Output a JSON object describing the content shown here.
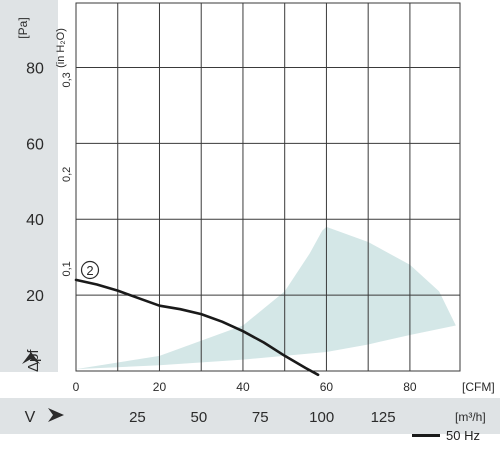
{
  "chart_data": {
    "type": "line",
    "y_unit_left": "[Pa]",
    "y_unit_secondary": "(in H₂O)",
    "y_axis_symbol": "Δpf",
    "x_unit_primary": "[CFM]",
    "x_unit_secondary": "[m³/h]",
    "x_axis_symbol": "V",
    "y_ticks_pa": [
      20,
      40,
      60,
      80
    ],
    "y_ticks_inh2o": [
      "0,1",
      "0,2",
      "0,3"
    ],
    "y_ticks_inh2o_values": [
      0.1,
      0.2,
      0.3
    ],
    "x_ticks_cfm": [
      0,
      20,
      40,
      60,
      80
    ],
    "x_ticks_m3h": [
      25,
      50,
      75,
      100,
      125
    ],
    "xlim_cfm": [
      0,
      92
    ],
    "ylim_pa": [
      0,
      97
    ],
    "grid": true,
    "curve_marker": "2",
    "series": [
      {
        "name": "50 Hz",
        "color": "#1a1a1a",
        "x_cfm": [
          0,
          5,
          10,
          15,
          20,
          25,
          30,
          35,
          40,
          45,
          50,
          55,
          58
        ],
        "y_pa": [
          24,
          22.8,
          21.2,
          19.2,
          17.2,
          16.3,
          15,
          13,
          10.5,
          7.5,
          4,
          0.8,
          -1
        ]
      }
    ],
    "operating_region": {
      "color": "#d4e7e7",
      "upper_x_cfm": [
        0,
        20,
        40,
        50,
        56,
        59,
        60,
        70,
        80,
        87,
        91
      ],
      "upper_y_pa": [
        0.5,
        4,
        12,
        21,
        31,
        37,
        38,
        34,
        28,
        21,
        12
      ],
      "lower_x_cfm": [
        91,
        80,
        70,
        60,
        40,
        20,
        0
      ],
      "lower_y_pa": [
        12,
        9.5,
        7,
        5,
        3,
        1.5,
        0.5
      ]
    }
  }
}
